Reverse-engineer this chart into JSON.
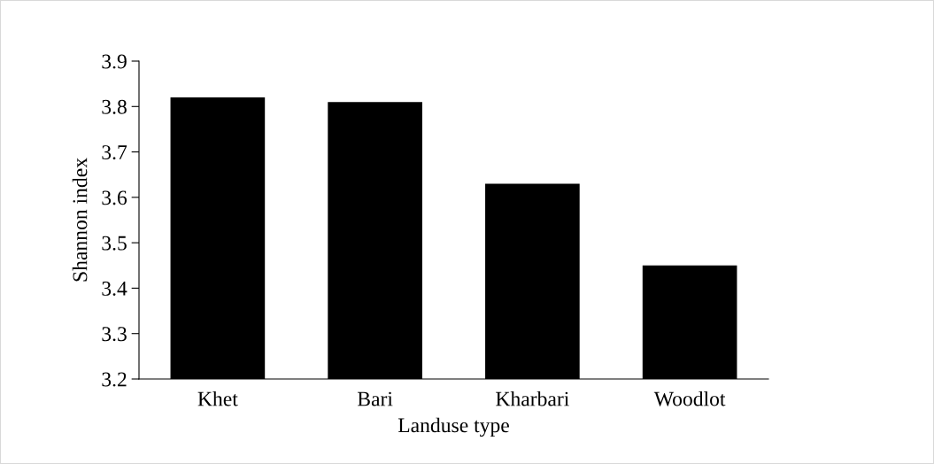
{
  "chart_data": {
    "type": "bar",
    "xlabel": "Landuse type",
    "ylabel": "Shannon index",
    "categories": [
      "Khet",
      "Bari",
      "Kharbari",
      "Woodlot"
    ],
    "values": [
      3.82,
      3.81,
      3.63,
      3.45
    ],
    "color": "#000000",
    "ylim": [
      3.2,
      3.9
    ],
    "yticks": [
      3.2,
      3.3,
      3.4,
      3.5,
      3.6,
      3.7,
      3.8,
      3.9
    ],
    "grid": false
  }
}
